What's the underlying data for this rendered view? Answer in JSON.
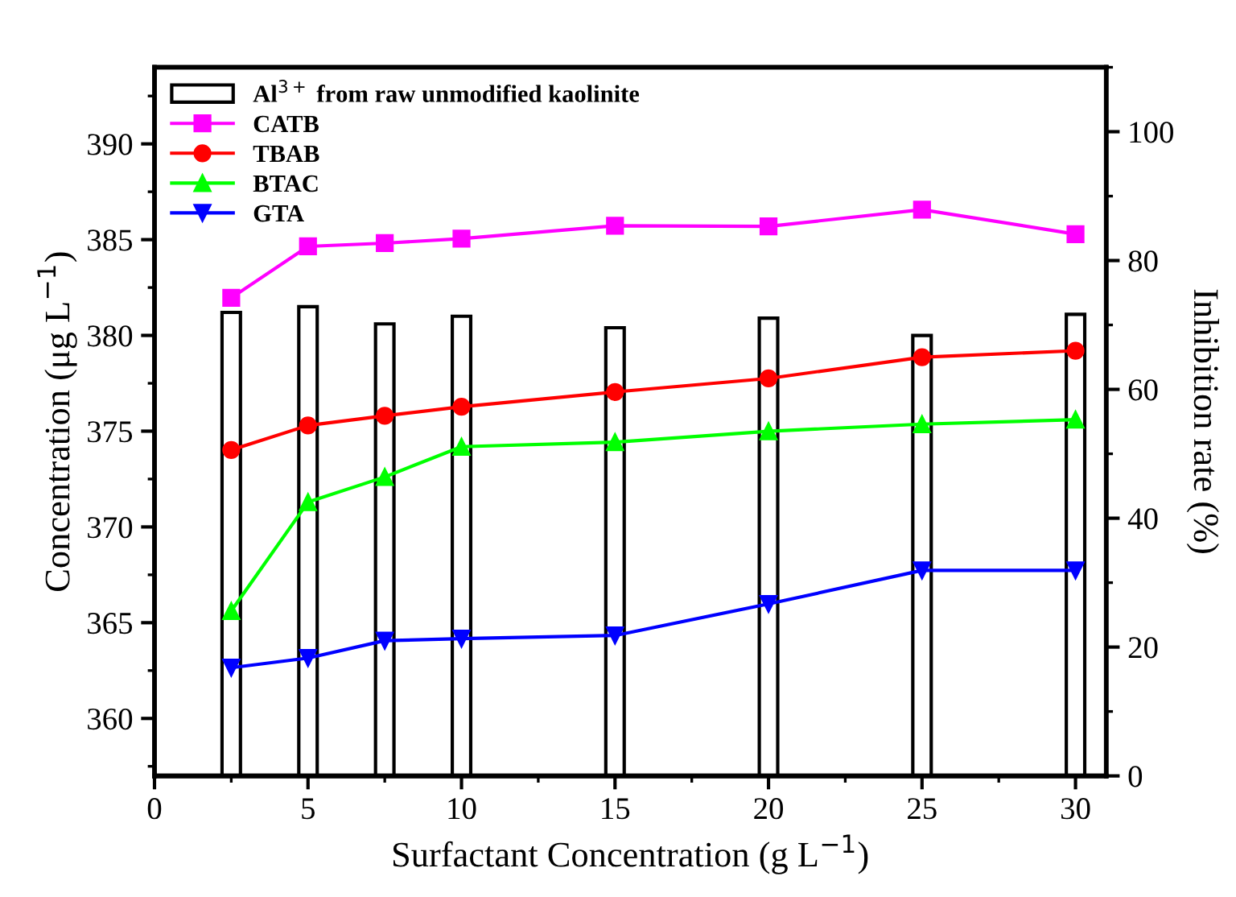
{
  "chart_data": {
    "type": "line",
    "xlabel": "Surfactant Concentration (g L$^{−1}$)",
    "ylabel": "Concentration (μg L$^{−1}$)",
    "y2label": "Inhibition rate (%)",
    "x": [
      2.5,
      5,
      7.5,
      10,
      15,
      20,
      25,
      30
    ],
    "xlim": [
      0,
      31
    ],
    "xticks": [
      0,
      5,
      10,
      15,
      20,
      25,
      30
    ],
    "ylim": [
      357,
      394
    ],
    "yticks": [
      360,
      365,
      370,
      375,
      380,
      385,
      390
    ],
    "y2lim": [
      0,
      110
    ],
    "y2ticks": [
      0,
      20,
      40,
      60,
      80,
      100
    ],
    "legend": "top left",
    "grid": false,
    "series": [
      {
        "name": "Al$^{3+}$ from raw unmodified kaolinite",
        "type": "bar",
        "color": "#ffffff",
        "values": [
          381.2,
          381.5,
          380.6,
          381.0,
          380.4,
          380.9,
          380.0,
          381.1
        ]
      },
      {
        "name": "CATB",
        "axis": "y2",
        "marker": "square",
        "color": "#ff00ff",
        "values": [
          74.2,
          82.2,
          82.7,
          83.4,
          85.4,
          85.3,
          87.9,
          84.1
        ]
      },
      {
        "name": "TBAB",
        "axis": "y2",
        "marker": "circle",
        "color": "#ff0000",
        "values": [
          50.6,
          54.4,
          55.9,
          57.3,
          59.6,
          61.7,
          65.0,
          66.0
        ]
      },
      {
        "name": "BTAC",
        "axis": "y2",
        "marker": "triangle",
        "color": "#00ff00",
        "values": [
          25.6,
          42.5,
          46.4,
          51.1,
          51.8,
          53.5,
          54.6,
          55.3
        ]
      },
      {
        "name": "GTA",
        "axis": "y2",
        "marker": "triangle_down",
        "color": "#0000ff",
        "values": [
          16.8,
          18.3,
          21.0,
          21.3,
          21.8,
          26.7,
          31.9,
          31.9
        ]
      }
    ]
  }
}
